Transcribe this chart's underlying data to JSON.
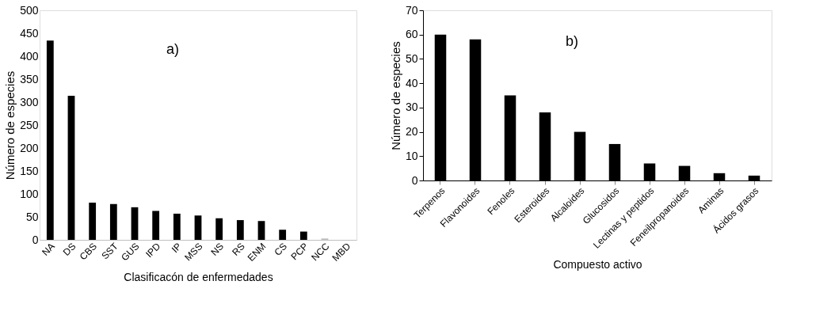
{
  "chart_data": [
    {
      "type": "bar",
      "xlabel": "Clasificacón de enfermedades",
      "ylabel": "Número de especies",
      "annotations": [
        "a)"
      ],
      "categories": [
        "NA",
        "DS",
        "CBS",
        "SST",
        "GUS",
        "IPD",
        "IP",
        "MSS",
        "NS",
        "RS",
        "ENM",
        "CS",
        "PCP",
        "NCC",
        "MBD"
      ],
      "values": [
        434,
        314,
        81,
        78,
        71,
        63,
        57,
        53,
        47,
        43,
        41,
        22,
        18,
        3,
        0
      ],
      "colors": [
        "#000000",
        "#000000",
        "#000000",
        "#000000",
        "#000000",
        "#000000",
        "#000000",
        "#000000",
        "#000000",
        "#000000",
        "#000000",
        "#000000",
        "#000000",
        "#bfbfbf",
        "#000000"
      ],
      "ylim": [
        0,
        500
      ],
      "yticks": [
        0,
        50,
        100,
        150,
        200,
        250,
        300,
        350,
        400,
        450,
        500
      ]
    },
    {
      "type": "bar",
      "xlabel": "Compuesto activo",
      "ylabel": "Número de especies",
      "annotations": [
        "b)"
      ],
      "categories": [
        "Terpenos",
        "Flavonoides",
        "Fenoles",
        "Esteroides",
        "Alcaloides",
        "Glucosidos",
        "Lectinas y peptidos",
        "Feneilpropanoides",
        "Aminas",
        "Ácidos grasos"
      ],
      "values": [
        60,
        58,
        35,
        28,
        20,
        15,
        7,
        6,
        3,
        2
      ],
      "colors": [
        "#000000",
        "#000000",
        "#000000",
        "#000000",
        "#000000",
        "#000000",
        "#000000",
        "#000000",
        "#000000",
        "#000000"
      ],
      "ylim": [
        0,
        70
      ],
      "yticks": [
        0,
        10,
        20,
        30,
        40,
        50,
        60,
        70
      ]
    }
  ]
}
